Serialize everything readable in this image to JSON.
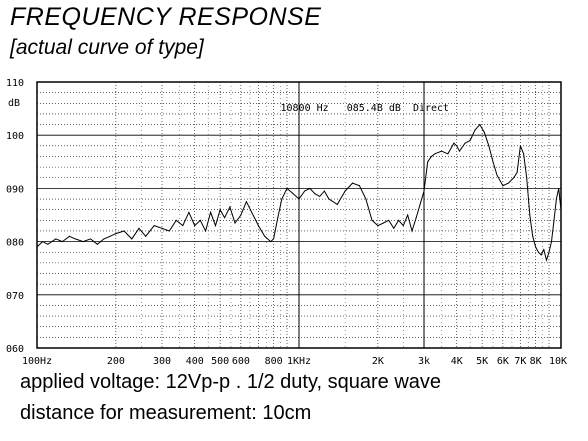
{
  "title": "FREQUENCY RESPONSE",
  "subtitle": "[actual curve of type]",
  "notes": {
    "voltage": "applied voltage: 12Vp-p . 1/2 duty, square wave",
    "distance": "distance for measurement: 10cm"
  },
  "chart_data": {
    "type": "line",
    "title": "FREQUENCY RESPONSE",
    "subtitle": "[actual curve of type]",
    "xlabel": "",
    "ylabel": "dB",
    "x_scale": "log",
    "xlim": [
      100,
      10000
    ],
    "ylim": [
      60,
      110
    ],
    "y_ticks": [
      {
        "value": 60,
        "label": "060"
      },
      {
        "value": 70,
        "label": "070"
      },
      {
        "value": 80,
        "label": "080"
      },
      {
        "value": 90,
        "label": "090"
      },
      {
        "value": 100,
        "label": "100"
      },
      {
        "value": 110,
        "label": "110"
      }
    ],
    "x_ticks": [
      {
        "value": 100,
        "label": "100Hz"
      },
      {
        "value": 200,
        "label": "200"
      },
      {
        "value": 300,
        "label": "300"
      },
      {
        "value": 400,
        "label": "400"
      },
      {
        "value": 500,
        "label": "500"
      },
      {
        "value": 600,
        "label": "600"
      },
      {
        "value": 800,
        "label": "800"
      },
      {
        "value": 1000,
        "label": "1KHz"
      },
      {
        "value": 2000,
        "label": "2K"
      },
      {
        "value": 3000,
        "label": "3k"
      },
      {
        "value": 4000,
        "label": "4K"
      },
      {
        "value": 5000,
        "label": "5K"
      },
      {
        "value": 6000,
        "label": "6K"
      },
      {
        "value": 7000,
        "label": "7K"
      },
      {
        "value": 8000,
        "label": "8K"
      },
      {
        "value": 10000,
        "label": "10K"
      }
    ],
    "grid": true,
    "cursor_readout": "10800 Hz   085.4B dB  Direct",
    "series": [
      {
        "x": [
          100,
          105,
          110,
          118,
          125,
          133,
          140,
          150,
          160,
          170,
          180,
          190,
          200,
          215,
          230,
          245,
          260,
          280,
          300,
          320,
          340,
          360,
          380,
          400,
          420,
          440,
          460,
          480,
          500,
          520,
          545,
          570,
          600,
          630,
          660,
          700,
          740,
          780,
          800,
          830,
          860,
          900,
          950,
          1000,
          1050,
          1100,
          1150,
          1200,
          1250,
          1300,
          1400,
          1500,
          1600,
          1700,
          1800,
          1900,
          2000,
          2100,
          2200,
          2300,
          2400,
          2500,
          2600,
          2700,
          2800,
          2900,
          3000,
          3100,
          3200,
          3300,
          3500,
          3700,
          3900,
          4000,
          4100,
          4300,
          4500,
          4700,
          4900,
          5100,
          5300,
          5500,
          5700,
          6000,
          6300,
          6600,
          6800,
          7000,
          7200,
          7400,
          7600,
          7800,
          8000,
          8200,
          8400,
          8600,
          8800,
          9000,
          9200,
          9400,
          9600,
          9800,
          10000
        ],
        "y": [
          79,
          80,
          79.5,
          80.5,
          80,
          81,
          80.5,
          80,
          80.5,
          79.5,
          80.5,
          81,
          81.5,
          82,
          80.5,
          82.5,
          81,
          83,
          82.5,
          82,
          84,
          83,
          85.5,
          83,
          84,
          82,
          85.5,
          83,
          86,
          84.5,
          86.5,
          83.5,
          85,
          87.5,
          85.5,
          83,
          81,
          80,
          80.5,
          84.5,
          88,
          90,
          89,
          88,
          89.5,
          90,
          89,
          88.5,
          89.5,
          88,
          87,
          89.5,
          91,
          90.5,
          88,
          84,
          83,
          83.5,
          84,
          82.5,
          84,
          83,
          85,
          82,
          84.5,
          87,
          89.5,
          95,
          96,
          96.5,
          97,
          96.5,
          98.5,
          98,
          97,
          98.5,
          99,
          101,
          102,
          100.5,
          98,
          95,
          92.5,
          90.5,
          91,
          92,
          93,
          98,
          96.5,
          92,
          85,
          81,
          79,
          78,
          77.5,
          78.5,
          76.5,
          78,
          80,
          84,
          88,
          90,
          86
        ]
      }
    ]
  }
}
